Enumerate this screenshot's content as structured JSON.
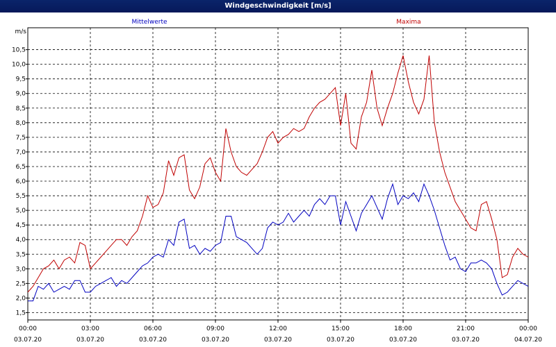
{
  "window": {
    "title": "Windgeschwindigkeit [m/s]"
  },
  "chart_data": {
    "type": "line",
    "title": "Windgeschwindigkeit [m/s]",
    "ylabel": "m/s",
    "xlabel": "",
    "ylim": [
      1.25,
      11.25
    ],
    "xlim": [
      "03.07.20 00:00",
      "04.07.20 00:00"
    ],
    "grid": true,
    "legend_position": "top",
    "y_ticks": [
      "1,5",
      "2,0",
      "2,5",
      "3,0",
      "3,5",
      "4,0",
      "4,5",
      "5,0",
      "5,5",
      "6,0",
      "6,5",
      "7,0",
      "7,5",
      "8,0",
      "8,5",
      "9,0",
      "9,5",
      "10,0",
      "10,5"
    ],
    "x_ticks": [
      {
        "time": "00:00",
        "date": "03.07.20"
      },
      {
        "time": "03:00",
        "date": "03.07.20"
      },
      {
        "time": "06:00",
        "date": "03.07.20"
      },
      {
        "time": "09:00",
        "date": "03.07.20"
      },
      {
        "time": "12:00",
        "date": "03.07.20"
      },
      {
        "time": "15:00",
        "date": "03.07.20"
      },
      {
        "time": "18:00",
        "date": "03.07.20"
      },
      {
        "time": "21:00",
        "date": "03.07.20"
      },
      {
        "time": "00:00",
        "date": "04.07.20"
      }
    ],
    "series": [
      {
        "name": "Mittelwerte",
        "color": "#0000c0",
        "x_hours": [
          0,
          0.25,
          0.5,
          0.75,
          1,
          1.25,
          1.5,
          1.75,
          2,
          2.25,
          2.5,
          2.75,
          3,
          3.25,
          3.5,
          3.75,
          4,
          4.25,
          4.5,
          4.75,
          5,
          5.25,
          5.5,
          5.75,
          6,
          6.25,
          6.5,
          6.75,
          7,
          7.25,
          7.5,
          7.75,
          8,
          8.25,
          8.5,
          8.75,
          9,
          9.25,
          9.5,
          9.75,
          10,
          10.25,
          10.5,
          10.75,
          11,
          11.25,
          11.5,
          11.75,
          12,
          12.25,
          12.5,
          12.75,
          13,
          13.25,
          13.5,
          13.75,
          14,
          14.25,
          14.5,
          14.75,
          15,
          15.25,
          15.5,
          15.75,
          16,
          16.25,
          16.5,
          16.75,
          17,
          17.25,
          17.5,
          17.75,
          18,
          18.25,
          18.5,
          18.75,
          19,
          19.25,
          19.5,
          19.75,
          20,
          20.25,
          20.5,
          20.75,
          21,
          21.25,
          21.5,
          21.75,
          22,
          22.25,
          22.5,
          22.75,
          23,
          23.25,
          23.5,
          23.75,
          24
        ],
        "values": [
          1.9,
          1.9,
          2.4,
          2.3,
          2.5,
          2.2,
          2.3,
          2.4,
          2.3,
          2.6,
          2.6,
          2.2,
          2.2,
          2.4,
          2.5,
          2.6,
          2.7,
          2.4,
          2.6,
          2.5,
          2.7,
          2.9,
          3.1,
          3.2,
          3.4,
          3.5,
          3.4,
          4.0,
          3.8,
          4.6,
          4.7,
          3.7,
          3.8,
          3.5,
          3.7,
          3.6,
          3.8,
          3.9,
          4.8,
          4.8,
          4.1,
          4.0,
          3.9,
          3.7,
          3.5,
          3.7,
          4.4,
          4.6,
          4.5,
          4.6,
          4.9,
          4.6,
          4.8,
          5.0,
          4.8,
          5.2,
          5.4,
          5.2,
          5.5,
          5.5,
          4.5,
          5.3,
          4.8,
          4.3,
          4.9,
          5.2,
          5.5,
          5.1,
          4.7,
          5.4,
          5.9,
          5.2,
          5.5,
          5.4,
          5.6,
          5.3,
          5.9,
          5.5,
          5.0,
          4.4,
          3.8,
          3.3,
          3.4,
          3.0,
          2.9,
          3.2,
          3.2,
          3.3,
          3.2,
          3.0,
          2.5,
          2.1,
          2.2,
          2.4,
          2.6,
          2.5,
          2.4
        ]
      },
      {
        "name": "Maxima",
        "color": "#c00000",
        "x_hours": [
          0,
          0.25,
          0.5,
          0.75,
          1,
          1.25,
          1.5,
          1.75,
          2,
          2.25,
          2.5,
          2.75,
          3,
          3.25,
          3.5,
          3.75,
          4,
          4.25,
          4.5,
          4.75,
          5,
          5.25,
          5.5,
          5.75,
          6,
          6.25,
          6.5,
          6.75,
          7,
          7.25,
          7.5,
          7.75,
          8,
          8.25,
          8.5,
          8.75,
          9,
          9.25,
          9.5,
          9.75,
          10,
          10.25,
          10.5,
          10.75,
          11,
          11.25,
          11.5,
          11.75,
          12,
          12.25,
          12.5,
          12.75,
          13,
          13.25,
          13.5,
          13.75,
          14,
          14.25,
          14.5,
          14.75,
          15,
          15.25,
          15.5,
          15.75,
          16,
          16.25,
          16.5,
          16.75,
          17,
          17.25,
          17.5,
          17.75,
          18,
          18.25,
          18.5,
          18.75,
          19,
          19.25,
          19.5,
          19.75,
          20,
          20.25,
          20.5,
          20.75,
          21,
          21.25,
          21.5,
          21.75,
          22,
          22.25,
          22.5,
          22.75,
          23,
          23.25,
          23.5,
          23.75,
          24
        ],
        "values": [
          2.2,
          2.4,
          2.7,
          3.0,
          3.1,
          3.3,
          3.0,
          3.3,
          3.4,
          3.2,
          3.9,
          3.8,
          3.0,
          3.2,
          3.4,
          3.6,
          3.8,
          4.0,
          4.0,
          3.8,
          4.1,
          4.3,
          4.8,
          5.5,
          5.1,
          5.2,
          5.6,
          6.7,
          6.2,
          6.8,
          6.9,
          5.7,
          5.4,
          5.8,
          6.6,
          6.8,
          6.3,
          6.0,
          7.8,
          7.0,
          6.5,
          6.3,
          6.2,
          6.4,
          6.6,
          7.0,
          7.5,
          7.7,
          7.3,
          7.5,
          7.6,
          7.8,
          7.7,
          7.8,
          8.2,
          8.5,
          8.7,
          8.8,
          9.0,
          9.2,
          7.9,
          9.0,
          7.3,
          7.1,
          8.2,
          8.7,
          9.8,
          8.5,
          7.9,
          8.5,
          9.0,
          9.7,
          10.3,
          9.4,
          8.7,
          8.3,
          8.8,
          10.3,
          8.0,
          7.0,
          6.3,
          5.8,
          5.3,
          5.0,
          4.7,
          4.4,
          4.3,
          5.2,
          5.3,
          4.7,
          4.0,
          2.7,
          2.8,
          3.4,
          3.7,
          3.5,
          3.4
        ]
      }
    ]
  }
}
